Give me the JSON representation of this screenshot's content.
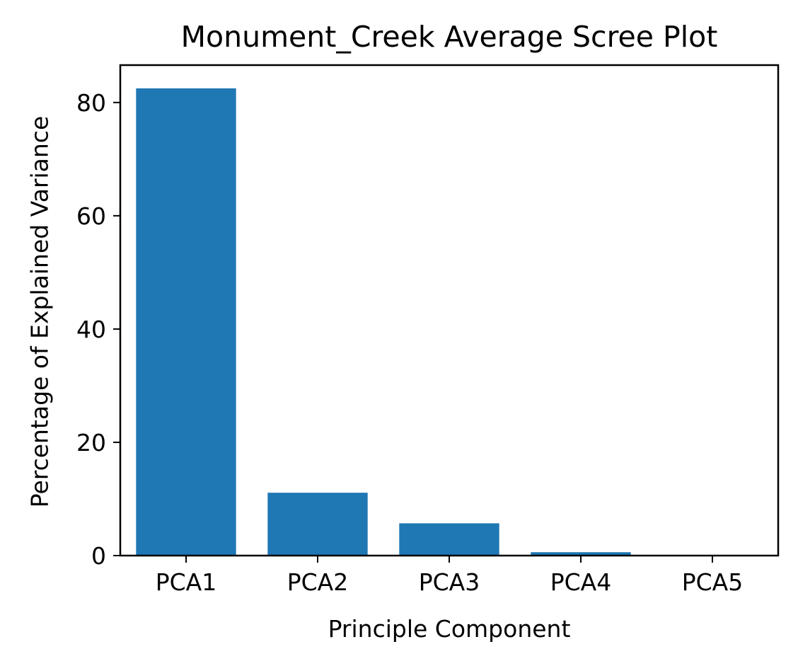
{
  "chart_data": {
    "type": "bar",
    "title": "Monument_Creek Average Scree Plot",
    "xlabel": "Principle Component",
    "ylabel": "Percentage of Explained Variance",
    "categories": [
      "PCA1",
      "PCA2",
      "PCA3",
      "PCA4",
      "PCA5"
    ],
    "values": [
      82.5,
      11.1,
      5.7,
      0.6,
      0.1
    ],
    "ylim": [
      0,
      86.6
    ],
    "yticks": [
      0,
      20,
      40,
      60,
      80
    ],
    "grid": false,
    "bar_color": "#1f77b4"
  }
}
